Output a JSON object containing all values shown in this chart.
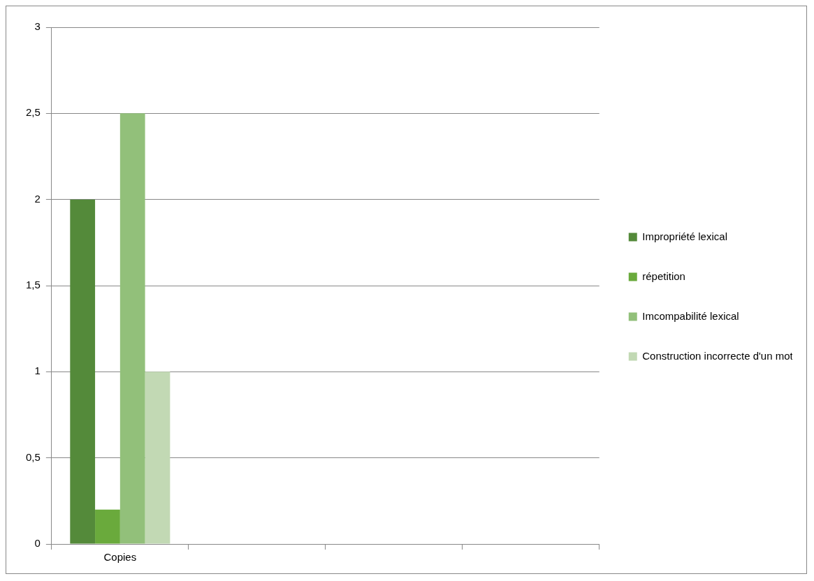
{
  "chart_data": {
    "type": "bar",
    "categories": [
      "Copies",
      null,
      null,
      null
    ],
    "series": [
      {
        "name": "Impropriété lexical",
        "color": "#548a3a",
        "values": [
          2,
          null,
          null,
          null
        ]
      },
      {
        "name": "répetition",
        "color": "#6aaa3c",
        "values": [
          0.2,
          null,
          null,
          null
        ]
      },
      {
        "name": "Imcompabilité lexical",
        "color": "#92c07a",
        "values": [
          2.5,
          null,
          null,
          null
        ]
      },
      {
        "name": "Construction incorrecte d'un mot",
        "color": "#c2d9b4",
        "values": [
          1,
          null,
          null,
          null
        ]
      }
    ],
    "ylim": [
      0,
      3
    ],
    "yticks": [
      0,
      {
        "value": 0.5,
        "label": "0,5"
      },
      1,
      {
        "value": 1.5,
        "label": "1,5"
      },
      2,
      {
        "value": 2.5,
        "label": "2,5"
      },
      3
    ],
    "grid": "y",
    "legend": "right"
  }
}
